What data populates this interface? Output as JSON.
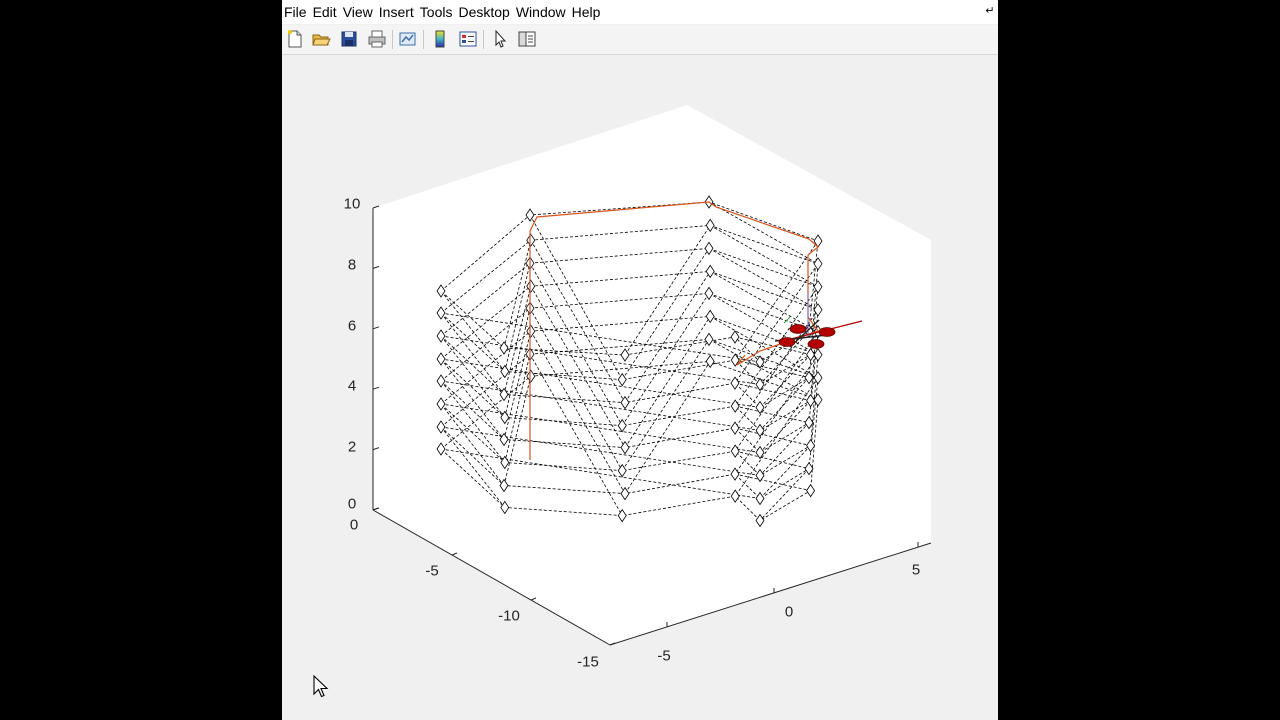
{
  "menu": {
    "file": "File",
    "edit": "Edit",
    "view": "View",
    "insert": "Insert",
    "tools": "Tools",
    "desktop": "Desktop",
    "window": "Window",
    "help": "Help"
  },
  "toolbar": {
    "buttons": [
      "new-figure-icon",
      "open-file-icon",
      "save-icon",
      "print-icon",
      "link-plot-icon",
      "insert-colorbar-icon",
      "insert-legend-icon",
      "edit-plot-icon",
      "property-inspector-icon"
    ]
  },
  "colors": {
    "window_bg": "#f0f0f0",
    "axes_bg": "#ffffff",
    "wireframe": "#000000",
    "trajectory": "#d9541a",
    "drone": "#b30000"
  },
  "chart_data": {
    "type": "scatter3",
    "title": "",
    "xlabel": "",
    "ylabel": "",
    "zlabel": "",
    "z_ticks": [
      "0",
      "2",
      "4",
      "6",
      "8",
      "10"
    ],
    "y_ticks": [
      "0",
      "-5",
      "-10",
      "-15"
    ],
    "x_ticks": [
      "-5",
      "0",
      "5"
    ],
    "zlim": [
      0,
      10
    ],
    "ylim": [
      -15,
      0
    ],
    "xlim": [
      -5,
      5
    ],
    "grid": false,
    "legend": "none",
    "series": [
      {
        "marker": "diamond",
        "line": "dashed"
      },
      {
        "line": "solid"
      }
    ]
  }
}
